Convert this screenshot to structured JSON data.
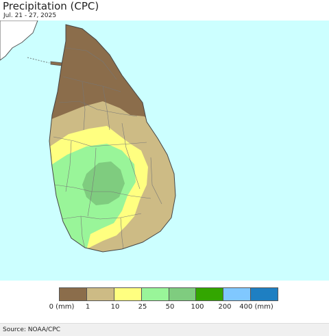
{
  "header": {
    "title": "Precipitation (CPC)",
    "date_range": "Jul. 21 - 27, 2025"
  },
  "map": {
    "ocean_color": "#ccffff",
    "land_color_neighbor": "#ffffff",
    "border_color": "#555555"
  },
  "legend": {
    "colors": [
      "#8b6d4b",
      "#cdbb85",
      "#ffff80",
      "#99f599",
      "#7fcc7f",
      "#33a600",
      "#80c8ff",
      "#1e7fc2"
    ],
    "labels": [
      "0 (mm)",
      "1",
      "10",
      "25",
      "50",
      "100",
      "200",
      "400 (mm)"
    ]
  },
  "footer": {
    "source": "Source: NOAA/CPC"
  }
}
